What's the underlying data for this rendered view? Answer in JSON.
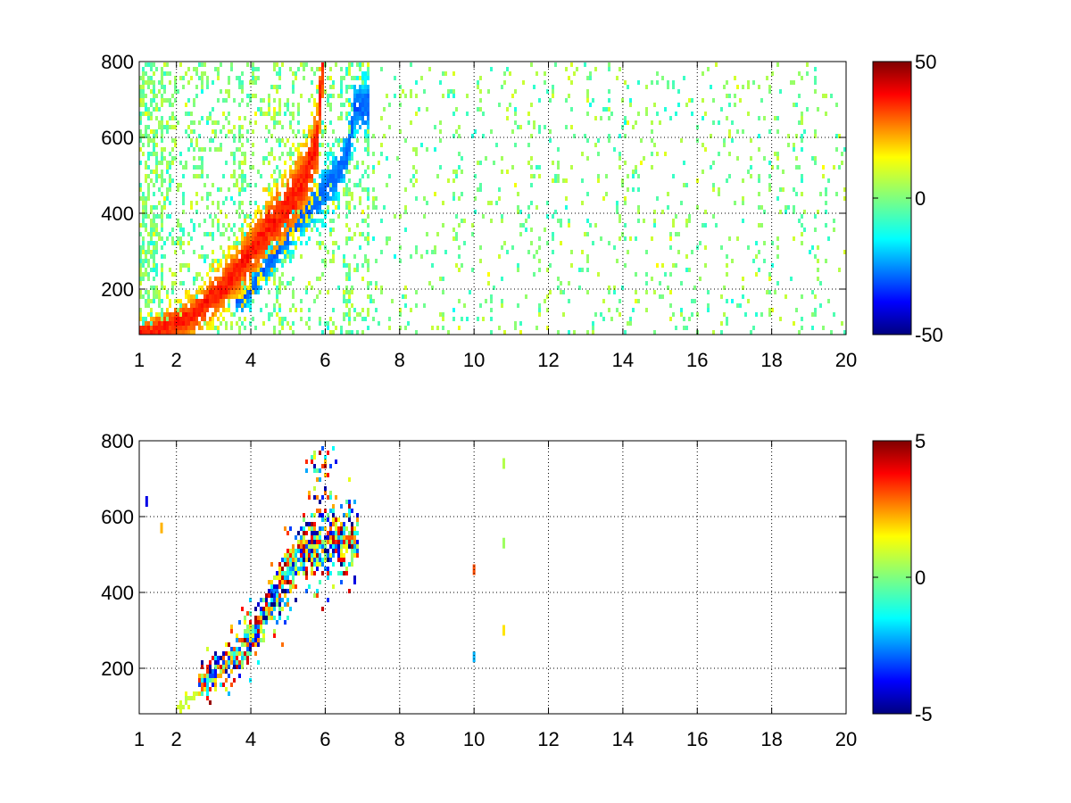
{
  "chart_data": [
    {
      "type": "heatmap",
      "panel": "top",
      "x_domain": [
        1,
        20
      ],
      "y_domain": [
        80,
        800
      ],
      "x_ticks": [
        1,
        2,
        4,
        6,
        8,
        10,
        12,
        14,
        16,
        18,
        20
      ],
      "x_tick_labels": [
        "1",
        "2",
        "4",
        "6",
        "8",
        "10",
        "12",
        "14",
        "16",
        "18",
        "20"
      ],
      "y_ticks": [
        200,
        400,
        600,
        800
      ],
      "y_tick_labels": [
        "200",
        "400",
        "600",
        "800"
      ],
      "grid": true,
      "grid_style": "dotted",
      "colormap": "jet",
      "color_range": [
        -50,
        50
      ],
      "colorbar_ticks": [
        50,
        0,
        -50
      ],
      "colorbar_tick_labels": [
        "50",
        "0",
        "-50"
      ],
      "features": [
        {
          "description": "positive ridge",
          "points": [
            [
              1.3,
              85
            ],
            [
              2.5,
              130
            ],
            [
              3.5,
              230
            ],
            [
              4.4,
              350
            ],
            [
              5.0,
              420
            ],
            [
              5.5,
              500
            ],
            [
              5.8,
              600
            ],
            [
              5.9,
              780
            ]
          ],
          "value": 35
        },
        {
          "description": "negative ridge",
          "points": [
            [
              3.8,
              170
            ],
            [
              4.5,
              270
            ],
            [
              5.2,
              370
            ],
            [
              5.8,
              440
            ],
            [
              6.3,
              500
            ],
            [
              6.6,
              560
            ],
            [
              6.8,
              680
            ]
          ],
          "value": -28
        }
      ],
      "scatter_density": "dense background noise with values near 0 across x 1–20"
    },
    {
      "type": "heatmap",
      "panel": "bottom",
      "x_domain": [
        1,
        20
      ],
      "y_domain": [
        80,
        800
      ],
      "x_ticks": [
        1,
        2,
        4,
        6,
        8,
        10,
        12,
        14,
        16,
        18,
        20
      ],
      "x_tick_labels": [
        "1",
        "2",
        "4",
        "6",
        "8",
        "10",
        "12",
        "14",
        "16",
        "18",
        "20"
      ],
      "y_ticks": [
        200,
        400,
        600,
        800
      ],
      "y_tick_labels": [
        "200",
        "400",
        "600",
        "800"
      ],
      "grid": true,
      "grid_style": "dotted",
      "colormap": "jet",
      "color_range": [
        -5,
        5
      ],
      "colorbar_ticks": [
        5,
        0,
        -5
      ],
      "colorbar_tick_labels": [
        "5",
        "0",
        "-5"
      ],
      "features": [
        {
          "description": "mixed noisy band",
          "points": [
            [
              2.6,
              160
            ],
            [
              3.5,
              220
            ],
            [
              4.2,
              310
            ],
            [
              4.8,
              420
            ],
            [
              5.4,
              500
            ],
            [
              6.0,
              540
            ],
            [
              6.6,
              560
            ],
            [
              5.9,
              760
            ]
          ],
          "value_range": [
            -5,
            5
          ]
        }
      ],
      "isolated_marks": [
        {
          "x": 10.0,
          "y": 230,
          "value": -2
        },
        {
          "x": 10.0,
          "y": 460,
          "value": 3
        },
        {
          "x": 10.8,
          "y": 300,
          "value": 1.5
        },
        {
          "x": 10.8,
          "y": 530,
          "value": 0.3
        },
        {
          "x": 10.8,
          "y": 740,
          "value": 0.5
        },
        {
          "x": 1.2,
          "y": 640,
          "value": -4
        },
        {
          "x": 1.6,
          "y": 570,
          "value": 2
        }
      ]
    }
  ]
}
